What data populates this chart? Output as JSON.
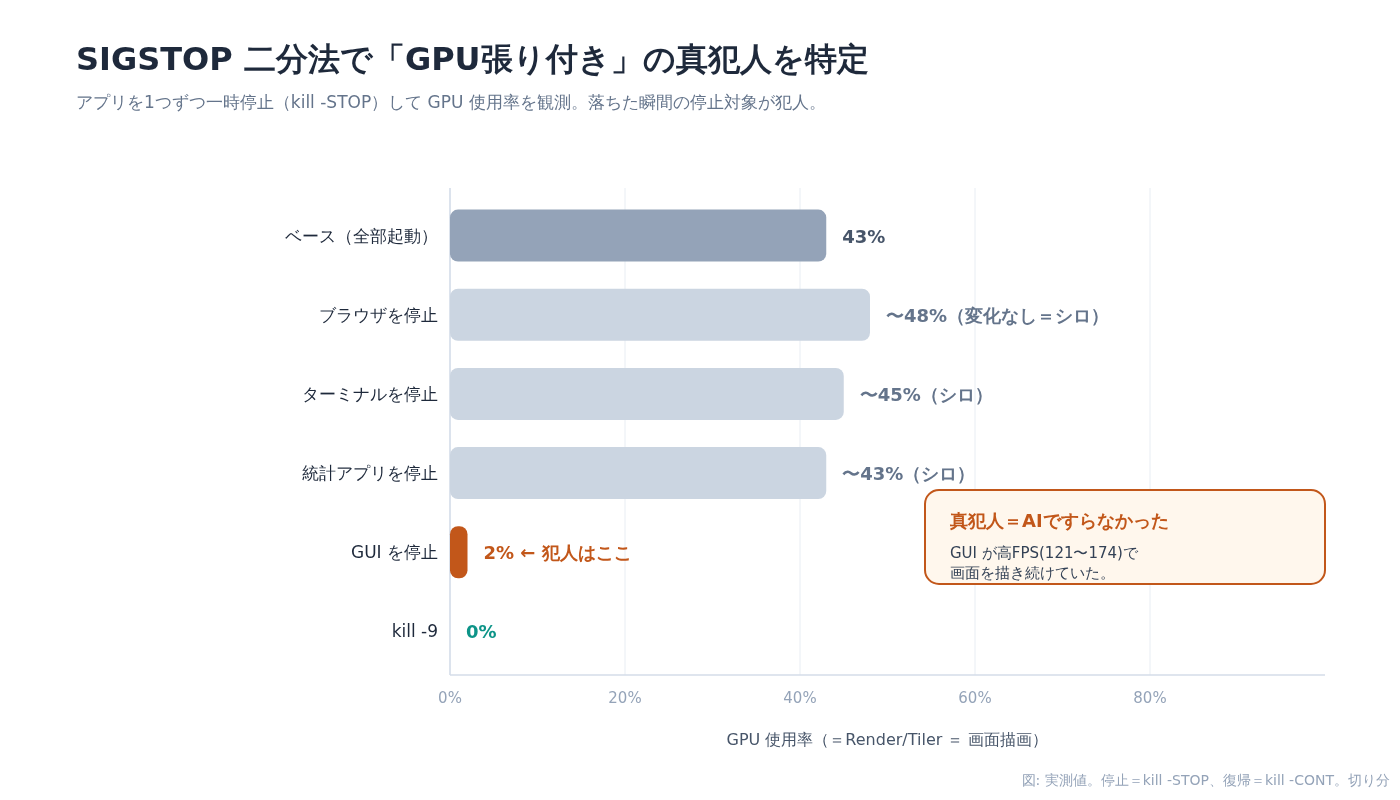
{
  "chart_data": {
    "type": "bar",
    "orientation": "horizontal",
    "title": "SIGSTOP 二分法で「GPU張り付き」の真犯人を特定",
    "subtitle": "アプリを1つずつ一時停止（kill -STOP）して GPU 使用率を観測。落ちた瞬間の停止対象が犯人。",
    "xlabel": "GPU 使用率（＝Render/Tiler ＝ 画面描画）",
    "categories": [
      "ベース（全部起動）",
      "ブラウザを停止",
      "ターミナルを停止",
      "統計アプリを停止",
      "GUI を停止",
      "kill -9"
    ],
    "values": [
      43,
      48,
      45,
      43,
      2,
      0
    ],
    "colors": [
      "#94a3b8",
      "#cbd5e1",
      "#cbd5e1",
      "#cbd5e1",
      "#c2571a",
      "#0d9488"
    ],
    "value_labels": [
      "43%",
      "〜48%（変化なし＝シロ）",
      "〜45%（シロ）",
      "〜43%（シロ）",
      "2% ← 犯人はここ",
      "0%"
    ],
    "xlim": [
      0,
      100
    ],
    "xticks": [
      {
        "value": 0,
        "label": "0%"
      },
      {
        "value": 20,
        "label": "20%"
      },
      {
        "value": 40,
        "label": "40%"
      },
      {
        "value": 60,
        "label": "60%"
      },
      {
        "value": 80,
        "label": "80%"
      }
    ],
    "grid": "x",
    "annotations": [
      "真犯人＝AIですらなかった",
      "GUI が高FPS(121〜174)で画面を描き続けていた。",
      "図: 実測値。停止＝kill -STOP、復帰＝kill -CONT。切り分"
    ]
  }
}
